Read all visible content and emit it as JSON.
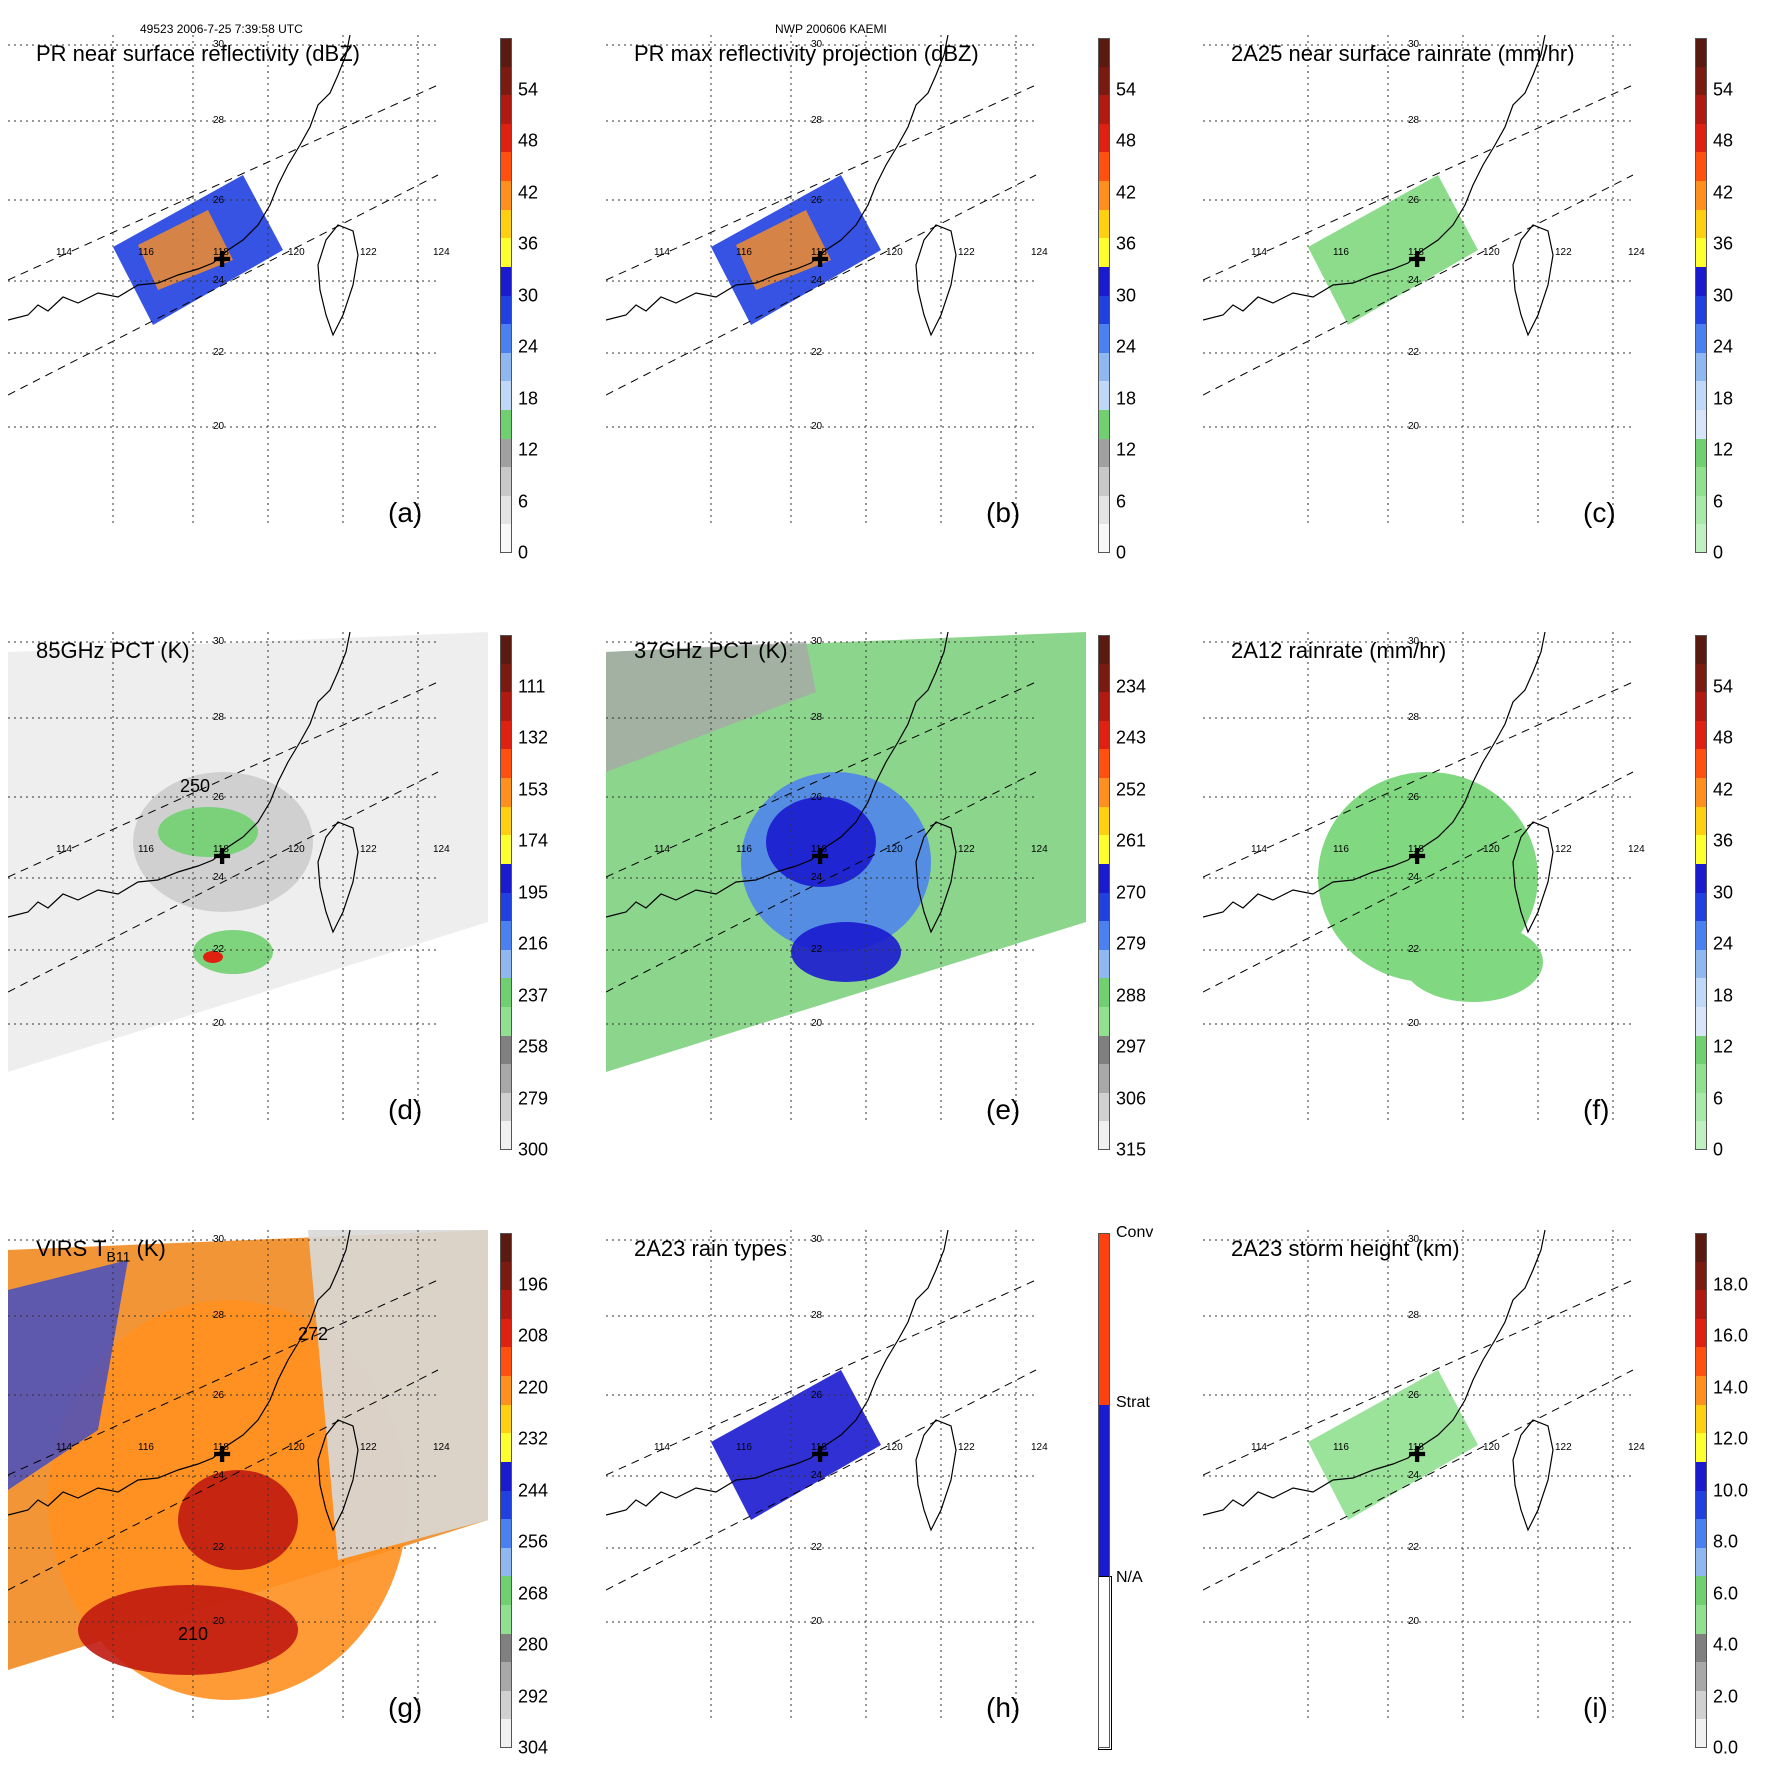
{
  "header": {
    "orbit_time": "49523 2006-7-25 7:39:58 UTC",
    "storm": "NWP 200606 KAEMI"
  },
  "lon_labels": [
    "114",
    "116",
    "118",
    "120",
    "122",
    "124"
  ],
  "lat_labels": [
    "30",
    "28",
    "26",
    "24",
    "22",
    "20"
  ],
  "colors": {
    "grid": "#333333",
    "coast": "#000000",
    "swath": "#000000"
  },
  "panels": [
    {
      "id": "a",
      "title": "PR near surface reflectivity (dBZ)",
      "label": "(a)",
      "ticks": [
        "54",
        "48",
        "42",
        "36",
        "30",
        "24",
        "18",
        "12",
        "6",
        "0"
      ],
      "colors": [
        "#5a1a10",
        "#7a1a10",
        "#b01a10",
        "#e02010",
        "#ff5010",
        "#ff9020",
        "#ffd010",
        "#ffff30",
        "#1a1acf",
        "#2040e0",
        "#4a80f0",
        "#90b8f0",
        "#c0d8f8",
        "#70d070",
        "#a0a0a0",
        "#c8c8c8",
        "#e4e4e4",
        "#f8f8f8"
      ]
    },
    {
      "id": "b",
      "title": "PR max reflectivity projection (dBZ)",
      "label": "(b)",
      "ticks": [
        "54",
        "48",
        "42",
        "36",
        "30",
        "24",
        "18",
        "12",
        "6",
        "0"
      ],
      "colors": [
        "#5a1a10",
        "#7a1a10",
        "#b01a10",
        "#e02010",
        "#ff5010",
        "#ff9020",
        "#ffd010",
        "#ffff30",
        "#1a1acf",
        "#2040e0",
        "#4a80f0",
        "#90b8f0",
        "#c0d8f8",
        "#70d070",
        "#a0a0a0",
        "#c8c8c8",
        "#e4e4e4",
        "#f8f8f8"
      ]
    },
    {
      "id": "c",
      "title": "2A25 near surface rainrate (mm/hr)",
      "label": "(c)",
      "ticks": [
        "54",
        "48",
        "42",
        "36",
        "30",
        "24",
        "18",
        "12",
        "6",
        "0"
      ],
      "colors": [
        "#5a1a10",
        "#7a1a10",
        "#b01a10",
        "#e02010",
        "#ff5010",
        "#ff9020",
        "#ffd010",
        "#ffff30",
        "#1a1acf",
        "#2040e0",
        "#4a80f0",
        "#90b8f0",
        "#c0d8f8",
        "#d8e4f8",
        "#70d070",
        "#90e090",
        "#a8e8a8",
        "#c0f0c0"
      ]
    },
    {
      "id": "d",
      "title": "85GHz PCT (K)",
      "label": "(d)",
      "ticks": [
        "111",
        "132",
        "153",
        "174",
        "195",
        "216",
        "237",
        "258",
        "279",
        "300"
      ],
      "colors": [
        "#5a1a10",
        "#7a1a10",
        "#b01a10",
        "#e02010",
        "#ff5010",
        "#ff9020",
        "#ffd010",
        "#ffff30",
        "#1a1acf",
        "#2040e0",
        "#4a80f0",
        "#90b8f0",
        "#70d070",
        "#90e090",
        "#808080",
        "#a8a8a8",
        "#d0d0d0",
        "#f0f0f0"
      ]
    },
    {
      "id": "e",
      "title": "37GHz PCT (K)",
      "label": "(e)",
      "ticks": [
        "234",
        "243",
        "252",
        "261",
        "270",
        "279",
        "288",
        "297",
        "306",
        "315"
      ],
      "colors": [
        "#5a1a10",
        "#7a1a10",
        "#b01a10",
        "#e02010",
        "#ff5010",
        "#ff9020",
        "#ffd010",
        "#ffff30",
        "#1a1acf",
        "#2040e0",
        "#4a80f0",
        "#90b8f0",
        "#70d070",
        "#90e090",
        "#808080",
        "#a8a8a8",
        "#d0d0d0",
        "#f0f0f0"
      ]
    },
    {
      "id": "f",
      "title": "2A12 rainrate (mm/hr)",
      "label": "(f)",
      "ticks": [
        "54",
        "48",
        "42",
        "36",
        "30",
        "24",
        "18",
        "12",
        "6",
        "0"
      ],
      "colors": [
        "#5a1a10",
        "#7a1a10",
        "#b01a10",
        "#e02010",
        "#ff5010",
        "#ff9020",
        "#ffd010",
        "#ffff30",
        "#1a1acf",
        "#2040e0",
        "#4a80f0",
        "#90b8f0",
        "#c0d8f8",
        "#d8e4f8",
        "#70d070",
        "#90e090",
        "#a8e8a8",
        "#c0f0c0"
      ]
    },
    {
      "id": "g",
      "title_main": "VIRS T",
      "title_sub": "B11",
      "title_unit": " (K)",
      "label": "(g)",
      "ticks": [
        "196",
        "208",
        "220",
        "232",
        "244",
        "256",
        "268",
        "280",
        "292",
        "304"
      ],
      "colors": [
        "#5a1a10",
        "#7a1a10",
        "#b01a10",
        "#e02010",
        "#ff5010",
        "#ff9020",
        "#ffd010",
        "#ffff30",
        "#1a1acf",
        "#2040e0",
        "#4a80f0",
        "#90b8f0",
        "#70d070",
        "#90e090",
        "#808080",
        "#a8a8a8",
        "#d0d0d0",
        "#f0f0f0"
      ]
    },
    {
      "id": "h",
      "title": "2A23 rain types",
      "label": "(h)",
      "ticks": [
        "Conv",
        "Strat",
        "N/A"
      ],
      "colors": [
        "#ff4010",
        "#1a1acf",
        "#ffffff"
      ]
    },
    {
      "id": "i",
      "title": "2A23 storm height (km)",
      "label": "(i)",
      "ticks": [
        "18.0",
        "16.0",
        "14.0",
        "12.0",
        "10.0",
        "8.0",
        "6.0",
        "4.0",
        "2.0",
        "0.0"
      ],
      "colors": [
        "#5a1a10",
        "#7a1a10",
        "#b01a10",
        "#e02010",
        "#ff5010",
        "#ff9020",
        "#ffd010",
        "#ffff30",
        "#1a1acf",
        "#2040e0",
        "#4a80f0",
        "#90b8f0",
        "#70d070",
        "#90e090",
        "#808080",
        "#a8a8a8",
        "#d0d0d0",
        "#f0f0f0"
      ]
    }
  ],
  "contour_labels": {
    "d": "250",
    "g_top": "272",
    "g_bottom": "210"
  }
}
